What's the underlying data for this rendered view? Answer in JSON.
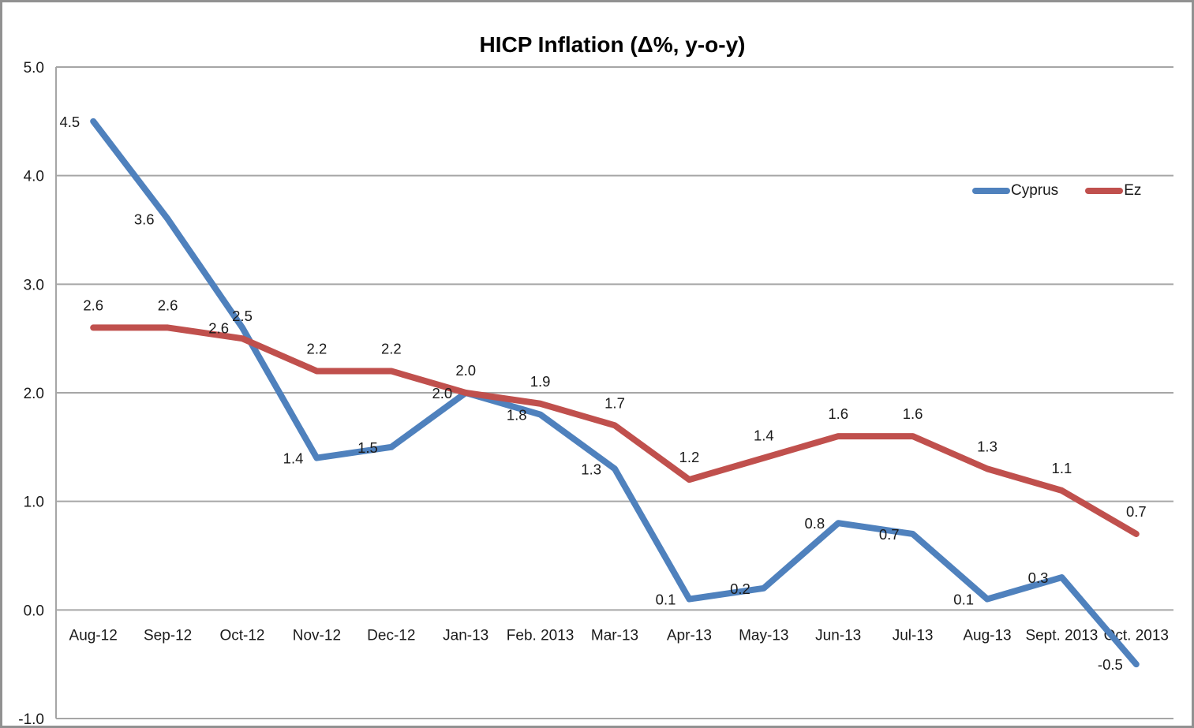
{
  "window": {
    "background": "#FFFFFF",
    "border_color": "#919191"
  },
  "chart_data": {
    "type": "line",
    "title": "HICP Inflation (Δ%, y-o-y)",
    "categories": [
      "Aug-12",
      "Sep-12",
      "Oct-12",
      "Nov-12",
      "Dec-12",
      "Jan-13",
      "Feb. 2013",
      "Mar-13",
      "Apr-13",
      "May-13",
      "Jun-13",
      "Jul-13",
      "Aug-13",
      "Sept. 2013",
      "Oct. 2013"
    ],
    "series": [
      {
        "name": "Cyprus",
        "color": "#4F81BD",
        "label_placement": "left",
        "values": [
          4.5,
          3.6,
          2.6,
          1.4,
          1.5,
          2.0,
          1.8,
          1.3,
          0.1,
          0.2,
          0.8,
          0.7,
          0.1,
          0.3,
          -0.5
        ],
        "labels": [
          "4.5",
          "3.6",
          "2.6",
          "1.4",
          "1.5",
          "2.0",
          "1.8",
          "1.3",
          "0.1",
          "0.2",
          "0.8",
          "0.7",
          "0.1",
          "0.3",
          "-0.5"
        ]
      },
      {
        "name": "Ez",
        "color": "#C0504D",
        "label_placement": "above",
        "values": [
          2.6,
          2.6,
          2.5,
          2.2,
          2.2,
          2.0,
          1.9,
          1.7,
          1.2,
          1.4,
          1.6,
          1.6,
          1.3,
          1.1,
          0.7
        ],
        "labels": [
          "2.6",
          "2.6",
          "2.5",
          "2.2",
          "2.2",
          "2.0",
          "1.9",
          "1.7",
          "1.2",
          "1.4",
          "1.6",
          "1.6",
          "1.3",
          "1.1",
          "0.7"
        ]
      }
    ],
    "ylim": [
      -1.0,
      5.0
    ],
    "y_tick_labels": [
      "5.0",
      "4.0",
      "3.0",
      "2.0",
      "1.0",
      "0.0",
      "-1.0"
    ],
    "grid": true,
    "legend_position": "inside-top-right",
    "gridline_color": "#A6A6A6",
    "axis_line_color": "#A6A6A6",
    "text_color": "#1a1a1a"
  },
  "legend": {
    "items": [
      {
        "label": "Cyprus",
        "color": "#4F81BD"
      },
      {
        "label": "Ez",
        "color": "#C0504D"
      }
    ]
  }
}
